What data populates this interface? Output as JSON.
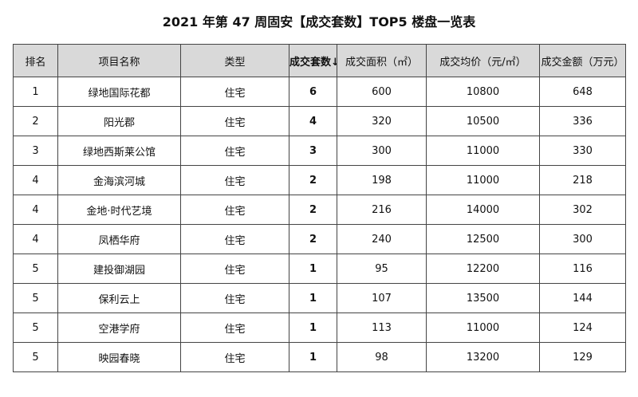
{
  "title": "2021 年第 47 周固安【成交套数】TOP5 楼盘一览表",
  "table": {
    "headers": [
      "排名",
      "项目名称",
      "类型",
      "成交套数↓",
      "成交面积（㎡）",
      "成交均价（元/㎡）",
      "成交金额（万元）"
    ],
    "rows": [
      [
        "1",
        "绿地国际花都",
        "住宅",
        "6",
        "600",
        "10800",
        "648"
      ],
      [
        "2",
        "阳光郡",
        "住宅",
        "4",
        "320",
        "10500",
        "336"
      ],
      [
        "3",
        "绿地西斯莱公馆",
        "住宅",
        "3",
        "300",
        "11000",
        "330"
      ],
      [
        "4",
        "金海滨河城",
        "住宅",
        "2",
        "198",
        "11000",
        "218"
      ],
      [
        "4",
        "金地·时代艺境",
        "住宅",
        "2",
        "216",
        "14000",
        "302"
      ],
      [
        "4",
        "凤栖华府",
        "住宅",
        "2",
        "240",
        "12500",
        "300"
      ],
      [
        "5",
        "建投御湖园",
        "住宅",
        "1",
        "95",
        "12200",
        "116"
      ],
      [
        "5",
        "保利云上",
        "住宅",
        "1",
        "107",
        "13500",
        "144"
      ],
      [
        "5",
        "空港学府",
        "住宅",
        "1",
        "113",
        "11000",
        "124"
      ],
      [
        "5",
        "映园春晓",
        "住宅",
        "1",
        "98",
        "13200",
        "129"
      ]
    ]
  }
}
